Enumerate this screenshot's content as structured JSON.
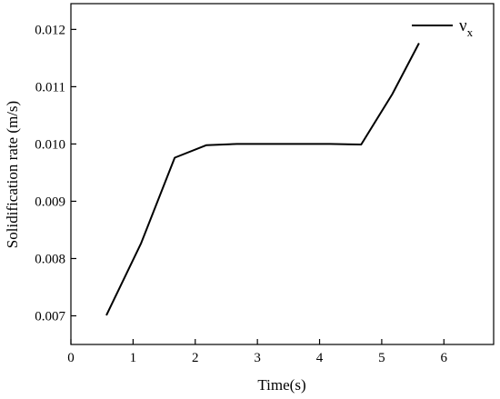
{
  "chart_data": {
    "type": "line",
    "title": "",
    "xlabel": "Time(s)",
    "ylabel": "Solidification rate (m/s)",
    "xlim": [
      0,
      6.8
    ],
    "ylim": [
      0.0065,
      0.01245
    ],
    "xticks": [
      0,
      1,
      2,
      3,
      4,
      5,
      6
    ],
    "xtick_labels": [
      "0",
      "1",
      "2",
      "3",
      "4",
      "5",
      "6"
    ],
    "yticks": [
      0.007,
      0.008,
      0.009,
      0.01,
      0.011,
      0.012
    ],
    "ytick_labels": [
      "0.007",
      "0.008",
      "0.009",
      "0.010",
      "0.011",
      "0.012"
    ],
    "grid": false,
    "legend_position": "top-right",
    "series": [
      {
        "name": "ν",
        "name_subscript": "x",
        "color": "#000000",
        "x": [
          0.57,
          1.13,
          1.67,
          2.18,
          2.67,
          3.17,
          3.67,
          4.17,
          4.67,
          5.17,
          5.6
        ],
        "y": [
          0.00701,
          0.00827,
          0.00976,
          0.00998,
          0.01,
          0.01,
          0.01,
          0.01,
          0.00999,
          0.01087,
          0.01176
        ]
      }
    ]
  }
}
